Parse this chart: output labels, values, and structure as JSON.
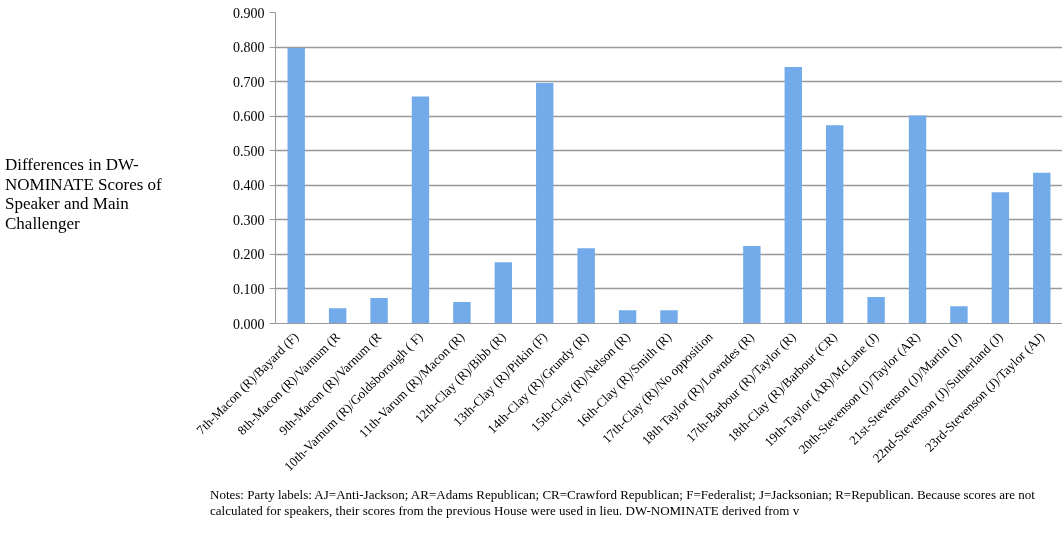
{
  "chart_data": {
    "type": "bar",
    "ylabel": "Differences in DW-NOMINATE Scores of Speaker and Main Challenger",
    "categories": [
      "7th-Macon (R)/Bayard (F)",
      "8th-Macon (R)/Varnum (R",
      "9th-Macon (R)/Varnum (R",
      "10th-Varnum (R)/Goldsborough ( F)",
      "11th-Varum (R)/Macon (R)",
      "12th-Clay (R)/Bibb (R)",
      "13th-Clay (R)/Pitkin (F)",
      "14th-Clay (R)/Grundy (R)",
      "15th-Clay (R)/Nelson (R)",
      "16th-Clay (R)/Smith (R)",
      "17th-Clay (R)/No opposition",
      "18th Taylor (R)/Lowndes (R)",
      "17th-Barbour (R)/Taylor (R)",
      "18th-Clay (R)/Barbour (CR)",
      "19th-Taylor (AR)/McLane (J)",
      "20th-Stevenson (J)/Taylor (AR)",
      "21st-Stevenson (J)/Martin (J)",
      "22nd-Stevenson (J)/Sutherland (J)",
      "23rd-Stevenson (J)/Taylor (AJ)"
    ],
    "values": [
      0.797,
      0.044,
      0.074,
      0.657,
      0.062,
      0.177,
      0.696,
      0.218,
      0.038,
      0.038,
      null,
      0.224,
      0.742,
      0.574,
      0.077,
      0.602,
      0.05,
      0.38,
      0.436
    ],
    "color": "#72aaea",
    "ylim": [
      0,
      0.9
    ],
    "yticks": [
      {
        "value": 0,
        "label": "0.000"
      },
      {
        "value": 0.1,
        "label": "0.100"
      },
      {
        "value": 0.2,
        "label": "0.200"
      },
      {
        "value": 0.3,
        "label": "0.300"
      },
      {
        "value": 0.4,
        "label": "0.400"
      },
      {
        "value": 0.5,
        "label": "0.500"
      },
      {
        "value": 0.6,
        "label": "0.600"
      },
      {
        "value": 0.7,
        "label": "0.700"
      },
      {
        "value": 0.8,
        "label": "0.800"
      },
      {
        "value": 0.9,
        "label": "0.900"
      }
    ],
    "grid": "y",
    "annotations": [
      "Notes: Party labels: AJ=Anti-Jackson; AR=Adams Republican; CR=Crawford Republican; F=Federalist; J=Jacksonian; R=Republican. Because scores are not calculated for speakers, their scores from the previous House were used in lieu. DW-NOMINATE derived from v"
    ]
  }
}
